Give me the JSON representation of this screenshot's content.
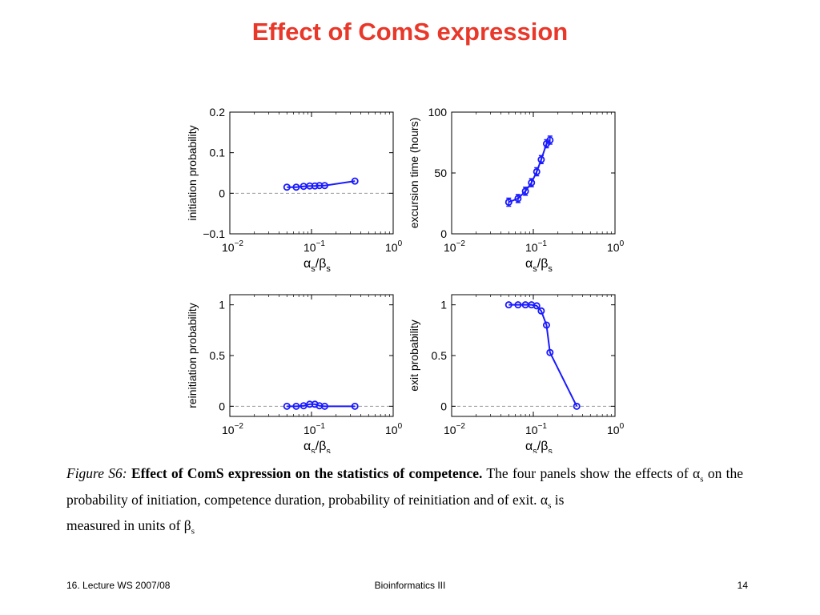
{
  "slide": {
    "title": "Effect of ComS expression",
    "footer_left": "16. Lecture WS 2007/08",
    "footer_center": "Bioinformatics III",
    "footer_right": "14"
  },
  "caption": {
    "figure_label": "Figure S6:",
    "bold_text": "Effect of ComS expression on the statistics of competence.",
    "body_line1": "The four panels show the effects",
    "body_line2": "of α",
    "alpha_sub": "s",
    "body_line2b": "on the probability of initiation, competence duration, probability of reinitiation and of exit.  α",
    "alpha_sub2": "s",
    "body_line2c": "is",
    "body_line3": "measured in units of β",
    "beta_sub": "s"
  },
  "colors": {
    "title": "#e8382a",
    "series": "#1a1aff",
    "zero_line": "#999999"
  },
  "chart_data": [
    {
      "type": "line",
      "xscale": "log",
      "xlim": [
        0.01,
        1
      ],
      "ylim": [
        -0.1,
        0.2
      ],
      "xticks": [
        {
          "value": 0.01,
          "base": "10",
          "exp": "−2"
        },
        {
          "value": 0.1,
          "base": "10",
          "exp": "−1"
        },
        {
          "value": 1,
          "base": "10",
          "exp": "0"
        }
      ],
      "yticks": [
        {
          "value": -0.1,
          "label": "−0.1"
        },
        {
          "value": 0,
          "label": "0"
        },
        {
          "value": 0.1,
          "label": "0.1"
        },
        {
          "value": 0.2,
          "label": "0.2"
        }
      ],
      "xlabel": {
        "alpha": "α",
        "sub1": "s",
        "slash": "/",
        "beta": "β",
        "sub2": "s"
      },
      "ylabel": "initiation probability",
      "zero_line": 0,
      "x": [
        0.05,
        0.065,
        0.08,
        0.095,
        0.11,
        0.125,
        0.145,
        0.34
      ],
      "y": [
        0.015,
        0.015,
        0.017,
        0.018,
        0.018,
        0.019,
        0.019,
        0.03
      ],
      "error_bars": false
    },
    {
      "type": "line",
      "xscale": "log",
      "xlim": [
        0.01,
        1
      ],
      "ylim": [
        0,
        100
      ],
      "xticks": [
        {
          "value": 0.01,
          "base": "10",
          "exp": "−2"
        },
        {
          "value": 0.1,
          "base": "10",
          "exp": "−1"
        },
        {
          "value": 1,
          "base": "10",
          "exp": "0"
        }
      ],
      "yticks": [
        {
          "value": 0,
          "label": "0"
        },
        {
          "value": 50,
          "label": "50"
        },
        {
          "value": 100,
          "label": "100"
        }
      ],
      "xlabel": {
        "alpha": "α",
        "sub1": "s",
        "slash": "/",
        "beta": "β",
        "sub2": "s"
      },
      "ylabel": "excursion time (hours)",
      "zero_line": null,
      "x": [
        0.05,
        0.065,
        0.08,
        0.095,
        0.11,
        0.125,
        0.145,
        0.16
      ],
      "y": [
        26,
        29,
        35,
        42,
        51,
        61,
        74,
        77
      ],
      "error_bars": true
    },
    {
      "type": "line",
      "xscale": "log",
      "xlim": [
        0.01,
        1
      ],
      "ylim": [
        -0.1,
        1.1
      ],
      "xticks": [
        {
          "value": 0.01,
          "base": "10",
          "exp": "−2"
        },
        {
          "value": 0.1,
          "base": "10",
          "exp": "−1"
        },
        {
          "value": 1,
          "base": "10",
          "exp": "0"
        }
      ],
      "yticks": [
        {
          "value": 0,
          "label": "0"
        },
        {
          "value": 0.5,
          "label": "0.5"
        },
        {
          "value": 1,
          "label": "1"
        }
      ],
      "xlabel": {
        "alpha": "α",
        "sub1": "s",
        "slash": "/",
        "beta": "β",
        "sub2": "s"
      },
      "ylabel": "reinitiation probability",
      "zero_line": 0,
      "x": [
        0.05,
        0.065,
        0.08,
        0.095,
        0.11,
        0.125,
        0.145,
        0.34
      ],
      "y": [
        0.0,
        0.0,
        0.005,
        0.02,
        0.02,
        0.005,
        0.0,
        0.0
      ],
      "error_bars": false
    },
    {
      "type": "line",
      "xscale": "log",
      "xlim": [
        0.01,
        1
      ],
      "ylim": [
        -0.1,
        1.1
      ],
      "xticks": [
        {
          "value": 0.01,
          "base": "10",
          "exp": "−2"
        },
        {
          "value": 0.1,
          "base": "10",
          "exp": "−1"
        },
        {
          "value": 1,
          "base": "10",
          "exp": "0"
        }
      ],
      "yticks": [
        {
          "value": 0,
          "label": "0"
        },
        {
          "value": 0.5,
          "label": "0.5"
        },
        {
          "value": 1,
          "label": "1"
        }
      ],
      "xlabel": {
        "alpha": "α",
        "sub1": "s",
        "slash": "/",
        "beta": "β",
        "sub2": "s"
      },
      "ylabel": "exit probability",
      "zero_line": 0,
      "x": [
        0.05,
        0.065,
        0.08,
        0.095,
        0.11,
        0.125,
        0.145,
        0.16,
        0.34
      ],
      "y": [
        1.0,
        1.0,
        1.0,
        1.0,
        0.99,
        0.94,
        0.8,
        0.53,
        0.0
      ],
      "error_bars": false
    }
  ]
}
